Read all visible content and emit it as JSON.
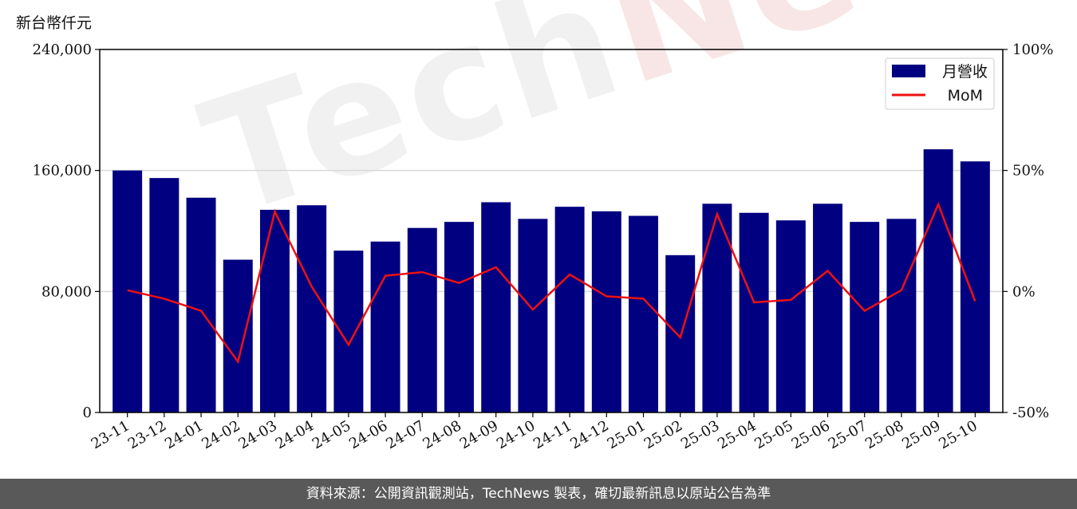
{
  "unit_label": "新台幣仟元",
  "footer_text": "資料來源：公開資訊觀測站，TechNews 製表，確切最新訊息以原站公告為準",
  "watermark": {
    "prefix": "Tech",
    "suffix": "News"
  },
  "colors": {
    "bar": "#000080",
    "line": "#ee1111",
    "grid": "#d9d9d9",
    "footer_bg": "#595959"
  },
  "chart_data": {
    "type": "bar",
    "categories": [
      "23-11",
      "23-12",
      "24-01",
      "24-02",
      "24-03",
      "24-04",
      "24-05",
      "24-06",
      "24-07",
      "24-08",
      "24-09",
      "24-10",
      "24-11",
      "24-12",
      "25-01",
      "25-02",
      "25-03",
      "25-04",
      "25-05",
      "25-06",
      "25-07",
      "25-08",
      "25-09",
      "25-10"
    ],
    "series": [
      {
        "name": "月營收",
        "axis": "left",
        "type": "bar",
        "values": [
          160000,
          155000,
          142000,
          101000,
          134000,
          137000,
          107000,
          113000,
          122000,
          126000,
          139000,
          128000,
          136000,
          133000,
          130000,
          104000,
          138000,
          132000,
          127000,
          138000,
          126000,
          128000,
          174000,
          166000
        ]
      },
      {
        "name": "MoM",
        "axis": "right",
        "type": "line",
        "unit": "%",
        "values": [
          0.5,
          -3,
          -8,
          -29,
          33,
          2,
          -22,
          6.5,
          8,
          3.5,
          10,
          -7.5,
          7,
          -2,
          -3,
          -19,
          32,
          -4.5,
          -3.5,
          8.5,
          -8,
          0.5,
          36,
          -4
        ]
      }
    ],
    "y_left": {
      "min": 0,
      "max": 240000,
      "ticks": [
        0,
        80000,
        160000,
        240000
      ],
      "tick_labels": [
        "0",
        "80,000",
        "160,000",
        "240,000"
      ]
    },
    "y_right": {
      "min": -50,
      "max": 100,
      "ticks": [
        -50,
        0,
        50,
        100
      ],
      "tick_labels": [
        "-50%",
        "0%",
        "50%",
        "100%"
      ]
    },
    "grid": "horizontal",
    "legend_position": "top-right"
  }
}
